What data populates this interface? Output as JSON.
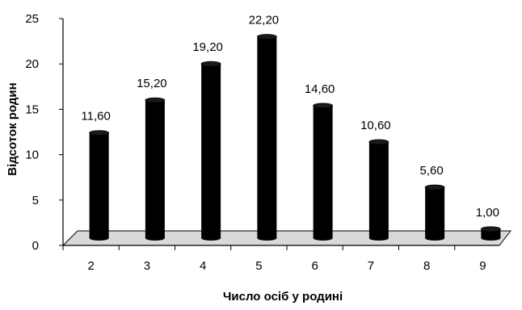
{
  "chart_data": {
    "type": "bar",
    "title": "",
    "xlabel": "Число осіб у родині",
    "ylabel": "Відсоток родин",
    "categories": [
      "2",
      "3",
      "4",
      "5",
      "6",
      "7",
      "8",
      "9"
    ],
    "values": [
      11.6,
      15.2,
      19.2,
      22.2,
      14.6,
      10.6,
      5.6,
      1.0
    ],
    "data_labels": [
      "11,60",
      "15,20",
      "19,20",
      "22,20",
      "14,60",
      "10,60",
      "5,60",
      "1,00"
    ],
    "y_ticks": [
      "0",
      "5",
      "10",
      "15",
      "20",
      "25"
    ],
    "y_tick_values": [
      0,
      5,
      10,
      15,
      20,
      25
    ],
    "ylim": [
      0,
      25
    ],
    "grid": false,
    "legend": "none",
    "style": "3d-cylinder",
    "bar_color": "#000000",
    "floor_color": "#d9d9d9"
  }
}
